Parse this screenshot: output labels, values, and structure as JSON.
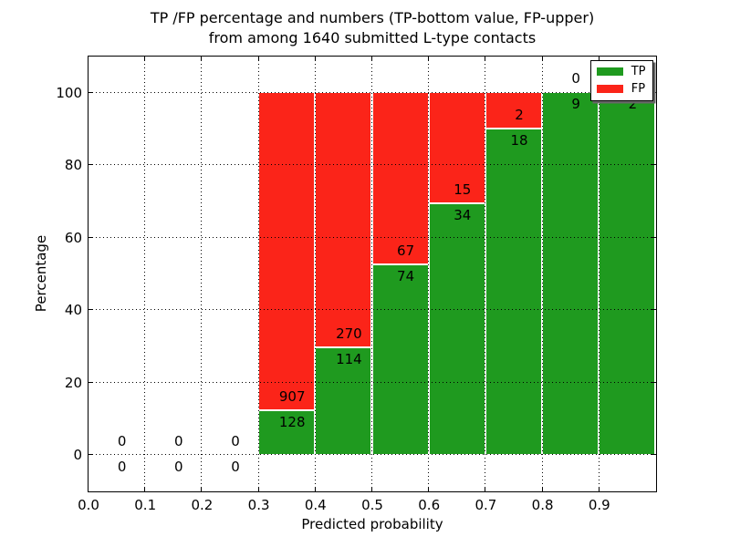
{
  "figure": {
    "title_line1": "TP /FP percentage and numbers (TP-bottom value, FP-upper)",
    "title_line2": "from among 1640 submitted L-type contacts",
    "xlabel": "Predicted probability",
    "ylabel": "Percentage"
  },
  "legend": {
    "items": [
      {
        "label": "TP",
        "color": "#1f9a1f"
      },
      {
        "label": "FP",
        "color": "#fb2419"
      }
    ]
  },
  "chart_data": {
    "type": "bar",
    "stacked": true,
    "normalized": "each non-empty 0.1 bin is scaled to 100%, TP bottom / FP top",
    "total_contacts": 1640,
    "title": "TP /FP percentage and numbers (TP-bottom value, FP-upper) from among 1640 submitted L-type contacts",
    "xlabel": "Predicted probability",
    "ylabel": "Percentage",
    "bin_edges": [
      0.0,
      0.1,
      0.2,
      0.3,
      0.4,
      0.5,
      0.6,
      0.7,
      0.8,
      0.9,
      1.0
    ],
    "series": [
      {
        "name": "TP",
        "color": "#1f9a1f",
        "values": [
          0,
          0,
          0,
          128,
          114,
          74,
          34,
          18,
          9,
          2
        ]
      },
      {
        "name": "FP",
        "color": "#fb2419",
        "values": [
          0,
          0,
          0,
          907,
          270,
          67,
          15,
          2,
          0,
          0
        ]
      }
    ],
    "fp_labels_visible": [
      "0",
      "0",
      "0",
      "907",
      "270",
      "67",
      "15",
      "2",
      "0",
      null
    ],
    "tp_labels_visible": [
      "0",
      "0",
      "0",
      "128",
      "114",
      "74",
      "34",
      "18",
      "9",
      "2"
    ],
    "xlim": [
      0.0,
      1.0
    ],
    "ylim": [
      -10,
      110
    ],
    "xticks": [
      0.0,
      0.1,
      0.2,
      0.3,
      0.4,
      0.5,
      0.6,
      0.7,
      0.8,
      0.9
    ],
    "xtick_labels": [
      "0.0",
      "0.1",
      "0.2",
      "0.3",
      "0.4",
      "0.5",
      "0.6",
      "0.7",
      "0.8",
      "0.9"
    ],
    "yticks": [
      0,
      20,
      40,
      60,
      80,
      100
    ],
    "ytick_labels": [
      "0",
      "20",
      "40",
      "60",
      "80",
      "100"
    ],
    "grid": "dotted",
    "legend_position": "upper right"
  }
}
